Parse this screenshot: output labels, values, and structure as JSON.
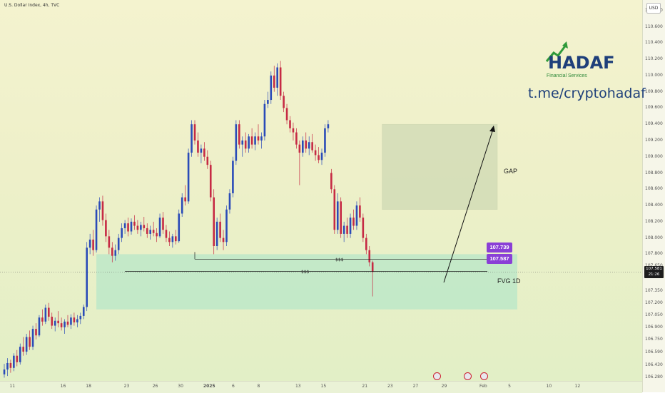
{
  "header": {
    "title": "U.S. Dollar Index, 4h, TVC",
    "currency_button": "USD"
  },
  "chart_data": {
    "type": "candlestick",
    "title": "U.S. Dollar Index, 4h, TVC",
    "ylim": [
      106.24,
      110.93
    ],
    "y_ticks": [
      "110.800",
      "110.600",
      "110.400",
      "110.200",
      "110.000",
      "109.800",
      "109.600",
      "109.400",
      "109.200",
      "109.000",
      "108.800",
      "108.600",
      "108.400",
      "108.200",
      "108.000",
      "107.800",
      "107.650",
      "107.350",
      "107.200",
      "107.050",
      "106.900",
      "106.750",
      "106.590",
      "106.430",
      "106.280"
    ],
    "x_ticks": [
      {
        "label": "11",
        "idx": 1
      },
      {
        "label": "16",
        "idx": 17
      },
      {
        "label": "18",
        "idx": 25
      },
      {
        "label": "23",
        "idx": 37
      },
      {
        "label": "26",
        "idx": 46
      },
      {
        "label": "30",
        "idx": 54
      },
      {
        "label": "2025",
        "idx": 62
      },
      {
        "label": "6",
        "idx": 71
      },
      {
        "label": "8",
        "idx": 79
      },
      {
        "label": "13",
        "idx": 91
      },
      {
        "label": "15",
        "idx": 99
      },
      {
        "label": "21",
        "idx": 112
      },
      {
        "label": "23",
        "idx": 120
      },
      {
        "label": "27",
        "idx": 128
      },
      {
        "label": "29",
        "idx": 137
      },
      {
        "label": "Feb",
        "idx": 149
      },
      {
        "label": "5",
        "idx": 158
      },
      {
        "label": "10",
        "idx": 170
      },
      {
        "label": "12",
        "idx": 179
      }
    ],
    "series": [
      {
        "ohlc": [
          [
            106.32,
            106.45,
            106.28,
            106.38
          ],
          [
            106.38,
            106.52,
            106.3,
            106.46
          ],
          [
            106.46,
            106.5,
            106.34,
            106.4
          ],
          [
            106.4,
            106.58,
            106.36,
            106.55
          ],
          [
            106.55,
            106.62,
            106.42,
            106.47
          ],
          [
            106.47,
            106.7,
            106.44,
            106.66
          ],
          [
            106.66,
            106.78,
            106.55,
            106.6
          ],
          [
            106.6,
            106.82,
            106.56,
            106.78
          ],
          [
            106.78,
            106.86,
            106.62,
            106.66
          ],
          [
            106.66,
            106.92,
            106.62,
            106.88
          ],
          [
            106.88,
            106.95,
            106.75,
            106.8
          ],
          [
            106.8,
            107.05,
            106.78,
            107.02
          ],
          [
            107.02,
            107.12,
            106.92,
            106.97
          ],
          [
            106.97,
            107.18,
            106.94,
            107.14
          ],
          [
            107.14,
            107.2,
            106.98,
            107.03
          ],
          [
            107.03,
            107.08,
            106.88,
            106.92
          ],
          [
            106.92,
            107.02,
            106.85,
            106.98
          ],
          [
            106.98,
            107.1,
            106.9,
            106.95
          ],
          [
            106.95,
            107.02,
            106.86,
            106.9
          ],
          [
            106.9,
            107.0,
            106.82,
            106.97
          ],
          [
            106.97,
            107.05,
            106.9,
            106.93
          ],
          [
            106.93,
            107.06,
            106.88,
            107.02
          ],
          [
            107.02,
            107.08,
            106.92,
            106.96
          ],
          [
            106.96,
            107.05,
            106.9,
            107.0
          ],
          [
            107.0,
            107.08,
            106.94,
            107.04
          ],
          [
            107.04,
            107.18,
            107.0,
            107.15
          ],
          [
            107.15,
            107.95,
            107.1,
            107.88
          ],
          [
            107.88,
            108.05,
            107.8,
            107.98
          ],
          [
            107.98,
            108.1,
            107.78,
            107.85
          ],
          [
            107.85,
            108.4,
            107.82,
            108.35
          ],
          [
            108.35,
            108.5,
            108.2,
            108.45
          ],
          [
            108.45,
            108.52,
            108.15,
            108.22
          ],
          [
            108.22,
            108.3,
            107.95,
            108.02
          ],
          [
            108.02,
            108.1,
            107.8,
            107.88
          ],
          [
            107.88,
            107.95,
            107.7,
            107.78
          ],
          [
            107.78,
            107.92,
            107.72,
            107.85
          ],
          [
            107.85,
            108.05,
            107.8,
            108.0
          ],
          [
            108.0,
            108.18,
            107.95,
            108.12
          ],
          [
            108.12,
            108.22,
            108.05,
            108.18
          ],
          [
            108.18,
            108.25,
            108.02,
            108.08
          ],
          [
            108.08,
            108.24,
            108.04,
            108.2
          ],
          [
            108.2,
            108.28,
            108.1,
            108.15
          ],
          [
            108.15,
            108.22,
            108.05,
            108.1
          ],
          [
            108.1,
            108.2,
            108.02,
            108.16
          ],
          [
            108.16,
            108.26,
            108.08,
            108.12
          ],
          [
            108.12,
            108.18,
            108.0,
            108.05
          ],
          [
            108.05,
            108.15,
            107.98,
            108.1
          ],
          [
            108.1,
            108.2,
            108.02,
            108.06
          ],
          [
            108.06,
            108.12,
            107.95,
            108.02
          ],
          [
            108.02,
            108.3,
            108.0,
            108.25
          ],
          [
            108.25,
            108.32,
            108.05,
            108.1
          ],
          [
            108.1,
            108.16,
            107.95,
            108.0
          ],
          [
            108.0,
            108.08,
            107.9,
            107.95
          ],
          [
            107.95,
            108.05,
            107.88,
            108.02
          ],
          [
            108.02,
            108.1,
            107.92,
            107.96
          ],
          [
            107.96,
            108.35,
            107.94,
            108.3
          ],
          [
            108.3,
            108.55,
            108.26,
            108.5
          ],
          [
            108.5,
            108.65,
            108.4,
            108.45
          ],
          [
            108.45,
            109.1,
            108.42,
            109.05
          ],
          [
            109.05,
            109.45,
            109.0,
            109.4
          ],
          [
            109.4,
            109.45,
            109.15,
            109.2
          ],
          [
            109.2,
            109.3,
            109.0,
            109.05
          ],
          [
            109.05,
            109.15,
            108.92,
            109.1
          ],
          [
            109.1,
            109.18,
            108.95,
            109.0
          ],
          [
            109.0,
            109.08,
            108.85,
            108.9
          ],
          [
            108.9,
            108.95,
            108.45,
            108.5
          ],
          [
            108.5,
            108.6,
            107.8,
            107.9
          ],
          [
            107.9,
            108.25,
            107.85,
            108.2
          ],
          [
            108.2,
            108.3,
            107.95,
            108.0
          ],
          [
            108.0,
            108.1,
            107.85,
            107.95
          ],
          [
            107.95,
            108.4,
            107.9,
            108.35
          ],
          [
            108.35,
            108.6,
            108.3,
            108.55
          ],
          [
            108.55,
            109.0,
            108.5,
            108.95
          ],
          [
            108.95,
            109.45,
            108.9,
            109.4
          ],
          [
            109.4,
            109.45,
            109.1,
            109.15
          ],
          [
            109.15,
            109.25,
            109.0,
            109.2
          ],
          [
            109.2,
            109.3,
            109.05,
            109.1
          ],
          [
            109.1,
            109.28,
            109.05,
            109.25
          ],
          [
            109.25,
            109.35,
            109.1,
            109.15
          ],
          [
            109.15,
            109.3,
            109.08,
            109.25
          ],
          [
            109.25,
            109.4,
            109.15,
            109.2
          ],
          [
            109.2,
            109.3,
            109.1,
            109.25
          ],
          [
            109.25,
            109.7,
            109.2,
            109.65
          ],
          [
            109.65,
            109.8,
            109.6,
            109.7
          ],
          [
            109.7,
            110.05,
            109.65,
            110.0
          ],
          [
            110.0,
            110.12,
            109.8,
            109.85
          ],
          [
            109.85,
            110.15,
            109.75,
            110.1
          ],
          [
            110.1,
            110.18,
            109.7,
            109.75
          ],
          [
            109.75,
            109.8,
            109.55,
            109.6
          ],
          [
            109.6,
            109.65,
            109.4,
            109.45
          ],
          [
            109.45,
            109.5,
            109.3,
            109.35
          ],
          [
            109.35,
            109.42,
            109.2,
            109.3
          ],
          [
            109.3,
            109.35,
            109.1,
            109.15
          ],
          [
            109.15,
            109.2,
            108.65,
            109.05
          ],
          [
            109.05,
            109.25,
            109.0,
            109.2
          ],
          [
            109.2,
            109.3,
            109.05,
            109.1
          ],
          [
            109.1,
            109.25,
            109.02,
            109.18
          ],
          [
            109.18,
            109.28,
            109.05,
            109.08
          ],
          [
            109.08,
            109.15,
            108.95,
            109.02
          ],
          [
            109.02,
            109.12,
            108.92,
            108.96
          ],
          [
            108.96,
            109.1,
            108.9,
            109.05
          ],
          [
            109.05,
            109.4,
            109.0,
            109.35
          ],
          [
            109.35,
            109.45,
            109.3,
            109.4
          ],
          [
            108.8,
            108.85,
            108.55,
            108.6
          ],
          [
            108.6,
            108.65,
            108.05,
            108.1
          ],
          [
            108.1,
            108.55,
            108.05,
            108.45
          ],
          [
            108.45,
            108.5,
            108.0,
            108.05
          ],
          [
            108.05,
            108.2,
            107.95,
            108.15
          ],
          [
            108.15,
            108.25,
            108.0,
            108.05
          ],
          [
            108.05,
            108.3,
            108.0,
            108.25
          ],
          [
            108.25,
            108.35,
            108.1,
            108.15
          ],
          [
            108.15,
            108.45,
            108.1,
            108.4
          ],
          [
            108.4,
            108.5,
            108.2,
            108.25
          ],
          [
            108.25,
            108.3,
            107.95,
            108.0
          ],
          [
            108.0,
            108.05,
            107.8,
            107.85
          ],
          [
            107.85,
            107.9,
            107.65,
            107.7
          ],
          [
            107.7,
            107.72,
            107.28,
            107.58
          ]
        ]
      }
    ],
    "zones": {
      "fvg": {
        "label": "FVG 1D",
        "top": 107.8,
        "bottom": 107.12
      },
      "gap": {
        "label": "GAP",
        "top": 109.4,
        "bottom": 108.35
      }
    },
    "levels": [
      {
        "value": 107.739,
        "label": "107.739",
        "text": "$$$"
      },
      {
        "value": 107.587,
        "label": "107.587",
        "text": "$$$"
      }
    ],
    "current_price": "107.581",
    "countdown": "21:26"
  },
  "branding": {
    "logo_text": "HADAF",
    "logo_sub": "Financial Services",
    "channel": "t.me/cryptohadaf"
  }
}
